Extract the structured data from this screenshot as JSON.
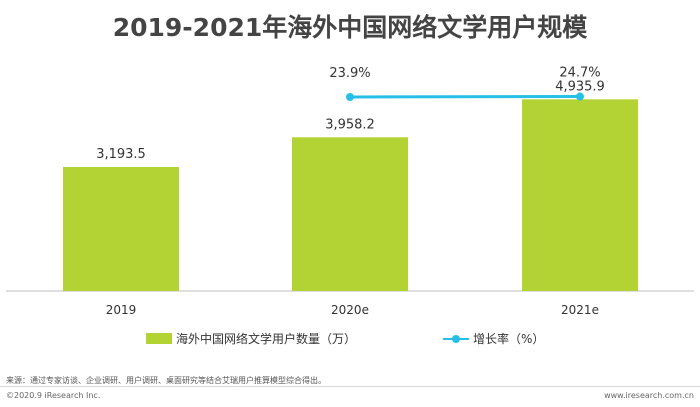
{
  "chart_data": {
    "type": "bar",
    "title": "2019-2021年海外中国网络文学用户规模",
    "categories": [
      "2019",
      "2020e",
      "2021e"
    ],
    "series": [
      {
        "name": "海外中国网络文学用户数量（万）",
        "type": "bar",
        "values": [
          3193.5,
          3958.2,
          4935.9
        ],
        "labels": [
          "3,193.5",
          "3,958.2",
          "4,935.9"
        ],
        "color": "#b3d335"
      },
      {
        "name": "增长率（%）",
        "type": "line",
        "values": [
          null,
          23.9,
          24.7
        ],
        "labels": [
          "",
          "23.9%",
          "24.7%"
        ],
        "color": "#26c0e6"
      }
    ],
    "ylim": [
      0,
      6000
    ],
    "grid": false,
    "legend": "bottom"
  },
  "footer": {
    "source": "来源：通过专家访谈、企业调研、用户调研、桌面研究等结合艾瑞用户推算模型综合得出。",
    "copyright": "©2020.9 iResearch Inc.",
    "website": "www.iresearch.com.cn"
  }
}
